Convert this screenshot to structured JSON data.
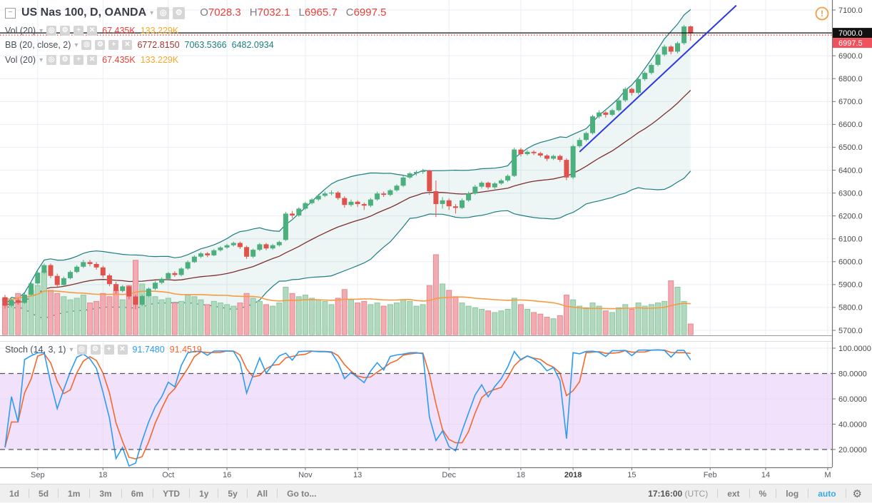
{
  "header": {
    "symbol": "US Nas 100, D, OANDA",
    "ohlc": [
      {
        "k": "O",
        "v": "7028.3"
      },
      {
        "k": "H",
        "v": "7032.1"
      },
      {
        "k": "L",
        "v": "6965.7"
      },
      {
        "k": "C",
        "v": "6997.5"
      }
    ]
  },
  "icons": {
    "collapse": "−",
    "caret": "▾",
    "visibility": "◎",
    "settings": "⚙",
    "add": "+",
    "close": "✕",
    "gear": "⚙",
    "alert": "!"
  },
  "legends": {
    "vol1": {
      "label": "Vol (20)",
      "value": "67.435K",
      "ma": "133.229K"
    },
    "bb": {
      "label": "BB (20, close, 2)",
      "basis": "6772.8150",
      "upper": "7063.5366",
      "lower": "6482.0934"
    },
    "vol2": {
      "label": "Vol (20)",
      "value": "67.435K",
      "ma": "133.229K"
    },
    "stoch": {
      "label": "Stoch (14, 3, 1)",
      "k": "91.7480",
      "d": "91.4519"
    }
  },
  "toolbar": {
    "ranges": [
      "1d",
      "5d",
      "1m",
      "3m",
      "6m",
      "YTD",
      "1y",
      "5y",
      "All"
    ],
    "goto": "Go to...",
    "time": "17:16:00",
    "tz": "(UTC)",
    "ext": "ext",
    "percent": "%",
    "log": "log",
    "auto": "auto"
  },
  "colors": {
    "up": "#4caf7e",
    "down": "#e0534c",
    "vol_up_fill": "#b2d9bf",
    "vol_up_stroke": "#8bc8a0",
    "vol_down_fill": "#f2abb1",
    "vol_down_stroke": "#e58a92",
    "bb_line": "#1e7d80",
    "bb_basis": "#7e2f2f",
    "bb_fill": "rgba(30,125,128,0.08)",
    "vol_ma": "#f59b41",
    "stoch_k": "#2d9cf0",
    "stoch_d": "#f2692e",
    "band_fill": "rgba(230,200,245,0.55)",
    "band_dash": "#55575b",
    "grid": "#e9eef4",
    "axis_line": "#757575",
    "axis_text": "#4a4a4a",
    "price_line": "#111111",
    "last_price_line": "#e03c3c",
    "last_price_bg": "#ee525d",
    "price_label_bg": "#111111",
    "trendline": "#2b38e8",
    "alert": "#f59b41",
    "legend_red": "#e8403a",
    "legend_orange": "#f7a92a",
    "legend_maroon": "#a83232",
    "legend_teal": "#1e7d80",
    "auto_blue": "#3caae1"
  },
  "chart_data": {
    "type": "candlestick",
    "title": "US Nas 100, D, OANDA",
    "price_axis": {
      "min": 5700,
      "max": 7100,
      "step": 100,
      "ticks": [
        7100,
        7000,
        6900,
        6800,
        6700,
        6600,
        6500,
        6400,
        6300,
        6200,
        6100,
        6000,
        5900,
        5800,
        5700
      ],
      "price_line": 7000,
      "last_price": 6997.5
    },
    "stoch_axis": {
      "ticks": [
        100,
        80,
        60,
        40,
        20
      ],
      "band": [
        20,
        80
      ],
      "tick_labels": [
        "100.0000",
        "80.0000",
        "60.0000",
        "40.0000",
        "20.0000"
      ]
    },
    "time_labels": [
      {
        "label": "Sep",
        "i": 5
      },
      {
        "label": "18",
        "i": 15
      },
      {
        "label": "Oct",
        "i": 25
      },
      {
        "label": "16",
        "i": 34
      },
      {
        "label": "Nov",
        "i": 46
      },
      {
        "label": "13",
        "i": 54
      },
      {
        "label": "Dec",
        "i": 68
      },
      {
        "label": "18",
        "i": 79
      },
      {
        "label": "2018",
        "i": 87,
        "bold": true
      },
      {
        "label": "15",
        "i": 96
      },
      {
        "label": "Feb",
        "i": 108
      },
      {
        "label": "14",
        "i": 116.5
      },
      {
        "label": "M",
        "i": 126
      }
    ],
    "indicators": {
      "bb": {
        "period": 20,
        "stdev": 2
      },
      "vol_ma": {
        "period": 20
      },
      "stoch": {
        "k": 14,
        "d": 3,
        "smooth": 1
      }
    },
    "trendline": {
      "i1": 88,
      "p1": 6480,
      "i2": 112,
      "p2": 7120
    },
    "candle_format": [
      "open",
      "high",
      "low",
      "close",
      "volume_k"
    ],
    "candles": [
      [
        5845,
        5855,
        5795,
        5808,
        230
      ],
      [
        5808,
        5838,
        5800,
        5832,
        210
      ],
      [
        5832,
        5840,
        5812,
        5820,
        260
      ],
      [
        5820,
        5862,
        5816,
        5856,
        240
      ],
      [
        5856,
        5912,
        5852,
        5905,
        280
      ],
      [
        5905,
        5958,
        5900,
        5952,
        310
      ],
      [
        5952,
        5992,
        5945,
        5985,
        400
      ],
      [
        5985,
        5992,
        5928,
        5938,
        280
      ],
      [
        5938,
        5948,
        5888,
        5898,
        260
      ],
      [
        5898,
        5935,
        5892,
        5928,
        240
      ],
      [
        5928,
        5962,
        5922,
        5955,
        220
      ],
      [
        5955,
        5985,
        5950,
        5978,
        230
      ],
      [
        5978,
        6008,
        5972,
        5998,
        250
      ],
      [
        5998,
        6008,
        5980,
        5990,
        200
      ],
      [
        5990,
        5998,
        5965,
        5975,
        210
      ],
      [
        5975,
        5982,
        5930,
        5940,
        260
      ],
      [
        5940,
        5948,
        5893,
        5902,
        240
      ],
      [
        5902,
        5912,
        5860,
        5872,
        280
      ],
      [
        5872,
        5898,
        5866,
        5892,
        220
      ],
      [
        5892,
        5896,
        5836,
        5848,
        310
      ],
      [
        5848,
        5856,
        5792,
        5812,
        470
      ],
      [
        5812,
        5856,
        5806,
        5850,
        320
      ],
      [
        5850,
        5888,
        5844,
        5882,
        260
      ],
      [
        5882,
        5916,
        5876,
        5908,
        240
      ],
      [
        5908,
        5932,
        5902,
        5925,
        220
      ],
      [
        5925,
        5955,
        5918,
        5950,
        230
      ],
      [
        5950,
        5958,
        5934,
        5942,
        200
      ],
      [
        5942,
        5976,
        5936,
        5970,
        210
      ],
      [
        5970,
        6006,
        5964,
        5998,
        250
      ],
      [
        5998,
        6028,
        5994,
        6022,
        240
      ],
      [
        6022,
        6042,
        6016,
        6036,
        220
      ],
      [
        6036,
        6042,
        6020,
        6028,
        190
      ],
      [
        6028,
        6056,
        6024,
        6050,
        210
      ],
      [
        6050,
        6068,
        6044,
        6062,
        200
      ],
      [
        6062,
        6078,
        6056,
        6072,
        190
      ],
      [
        6072,
        6088,
        6066,
        6082,
        180
      ],
      [
        6082,
        6088,
        6056,
        6064,
        200
      ],
      [
        6064,
        6070,
        6012,
        6022,
        260
      ],
      [
        6022,
        6058,
        6016,
        6052,
        230
      ],
      [
        6052,
        6082,
        6046,
        6076,
        210
      ],
      [
        6076,
        6082,
        6050,
        6058,
        190
      ],
      [
        6058,
        6078,
        6052,
        6072,
        180
      ],
      [
        6072,
        6092,
        6066,
        6086,
        200
      ],
      [
        6095,
        6218,
        6090,
        6210,
        300
      ],
      [
        6210,
        6222,
        6190,
        6202,
        260
      ],
      [
        6202,
        6238,
        6196,
        6232,
        240
      ],
      [
        6232,
        6262,
        6226,
        6256,
        250
      ],
      [
        6256,
        6278,
        6250,
        6272,
        230
      ],
      [
        6272,
        6296,
        6266,
        6288,
        220
      ],
      [
        6288,
        6306,
        6282,
        6298,
        210
      ],
      [
        6298,
        6312,
        6290,
        6302,
        190
      ],
      [
        6302,
        6308,
        6270,
        6278,
        230
      ],
      [
        6278,
        6286,
        6236,
        6248,
        285
      ],
      [
        6248,
        6272,
        6240,
        6262,
        220
      ],
      [
        6262,
        6268,
        6240,
        6252,
        200
      ],
      [
        6252,
        6258,
        6226,
        6245,
        210
      ],
      [
        6245,
        6278,
        6238,
        6272,
        190
      ],
      [
        6272,
        6306,
        6266,
        6298,
        200
      ],
      [
        6298,
        6306,
        6283,
        6292,
        180
      ],
      [
        6292,
        6318,
        6286,
        6312,
        190
      ],
      [
        6312,
        6338,
        6306,
        6332,
        200
      ],
      [
        6332,
        6375,
        6326,
        6368,
        220
      ],
      [
        6368,
        6392,
        6362,
        6386,
        210
      ],
      [
        6386,
        6398,
        6376,
        6392,
        180
      ],
      [
        6392,
        6406,
        6384,
        6398,
        190
      ],
      [
        6398,
        6402,
        6292,
        6308,
        310
      ],
      [
        6308,
        6355,
        6195,
        6252,
        505
      ],
      [
        6252,
        6282,
        6232,
        6268,
        320
      ],
      [
        6268,
        6276,
        6226,
        6242,
        280
      ],
      [
        6242,
        6252,
        6210,
        6235,
        240
      ],
      [
        6235,
        6276,
        6230,
        6268,
        200
      ],
      [
        6268,
        6306,
        6262,
        6298,
        180
      ],
      [
        6298,
        6336,
        6292,
        6328,
        170
      ],
      [
        6328,
        6352,
        6320,
        6345,
        160
      ],
      [
        6345,
        6350,
        6316,
        6325,
        150
      ],
      [
        6325,
        6348,
        6318,
        6342,
        140
      ],
      [
        6342,
        6362,
        6336,
        6355,
        150
      ],
      [
        6355,
        6382,
        6348,
        6375,
        160
      ],
      [
        6375,
        6498,
        6370,
        6490,
        230
      ],
      [
        6490,
        6498,
        6460,
        6470,
        190
      ],
      [
        6470,
        6488,
        6464,
        6480,
        160
      ],
      [
        6480,
        6487,
        6466,
        6474,
        140
      ],
      [
        6474,
        6480,
        6456,
        6464,
        130
      ],
      [
        6464,
        6470,
        6440,
        6450,
        110
      ],
      [
        6450,
        6468,
        6444,
        6462,
        100
      ],
      [
        6462,
        6468,
        6436,
        6445,
        120
      ],
      [
        6445,
        6452,
        6356,
        6368,
        250
      ],
      [
        6368,
        6512,
        6360,
        6505,
        220
      ],
      [
        6505,
        6542,
        6498,
        6532,
        180
      ],
      [
        6532,
        6568,
        6526,
        6562,
        170
      ],
      [
        6562,
        6642,
        6556,
        6635,
        200
      ],
      [
        6635,
        6662,
        6626,
        6652,
        180
      ],
      [
        6652,
        6658,
        6630,
        6642,
        150
      ],
      [
        6642,
        6668,
        6636,
        6662,
        140
      ],
      [
        6662,
        6712,
        6656,
        6705,
        170
      ],
      [
        6705,
        6762,
        6698,
        6755,
        190
      ],
      [
        6755,
        6760,
        6726,
        6738,
        160
      ],
      [
        6738,
        6805,
        6730,
        6798,
        200
      ],
      [
        6798,
        6832,
        6790,
        6825,
        180
      ],
      [
        6825,
        6868,
        6818,
        6860,
        190
      ],
      [
        6860,
        6912,
        6853,
        6905,
        200
      ],
      [
        6905,
        6948,
        6898,
        6940,
        210
      ],
      [
        6940,
        6946,
        6906,
        6918,
        340
      ],
      [
        6918,
        6962,
        6910,
        6955,
        300
      ],
      [
        6955,
        7035,
        6948,
        7028,
        210
      ],
      [
        7028.3,
        7032.1,
        6965.7,
        6997.5,
        67
      ]
    ]
  }
}
